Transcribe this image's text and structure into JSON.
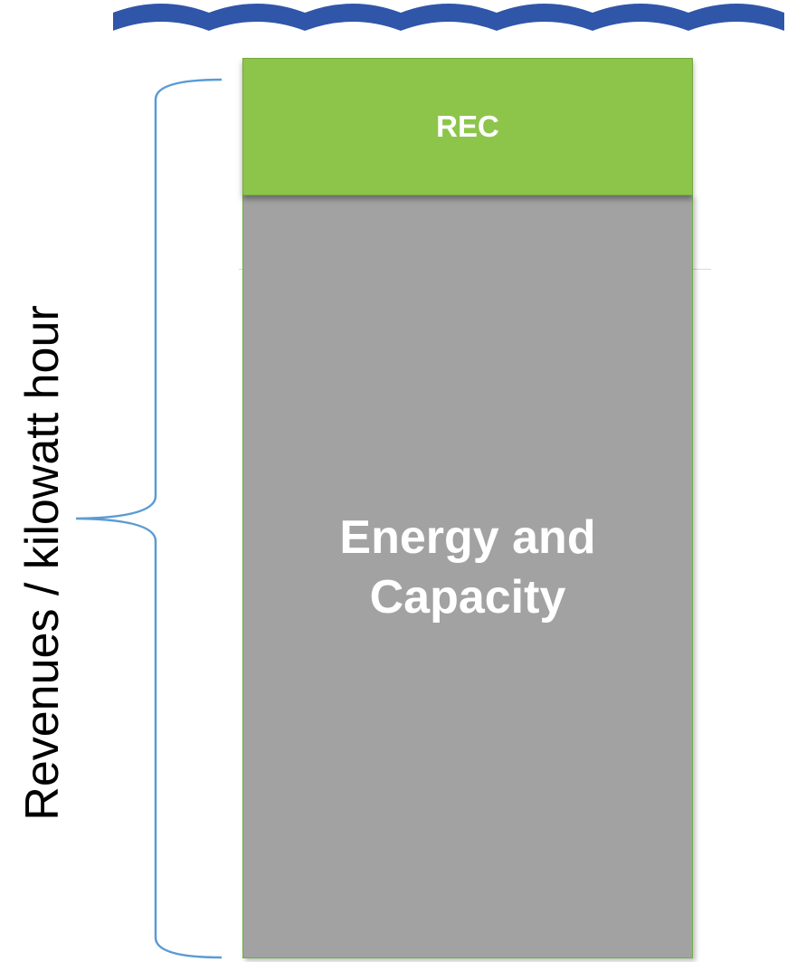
{
  "diagram": {
    "axis_label": "Revenues / kilowatt hour",
    "segments": [
      {
        "key": "rec",
        "label": "REC",
        "color": "#8dc54b"
      },
      {
        "key": "energy",
        "label": "Energy and Capacity",
        "color": "#a2a2a2"
      }
    ],
    "wave_color": "#2f56a8",
    "brace_color": "#5b9bd5"
  }
}
